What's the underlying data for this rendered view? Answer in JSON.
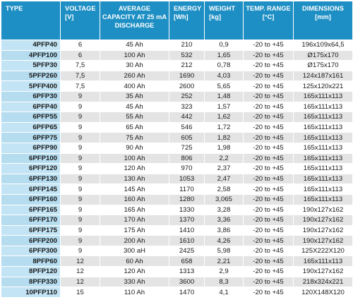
{
  "header": {
    "type": "TYPE",
    "voltage": "VOLTAGE [V]",
    "capacity": "AVERAGE CAPACITY AT 25 mA DISCHARGE",
    "energy": "ENERGY [Wh]",
    "weight": "WEIGHT [kg]",
    "temp": "TEMP. RANGE [°C]",
    "dimensions": "DIMENSIONS [mm]"
  },
  "rows": [
    {
      "type": "4PFP40",
      "voltage": "6",
      "capacity": "45 Ah",
      "energy": "210",
      "weight": "0,9",
      "temp": "-20 to +45",
      "dimensions": "196x109x64,5"
    },
    {
      "type": "4PFP100",
      "voltage": "6",
      "capacity": "100 Ah",
      "energy": "532",
      "weight": "1,65",
      "temp": "-20 to +45",
      "dimensions": "Ø175x170"
    },
    {
      "type": "5PFP30",
      "voltage": "7,5",
      "capacity": "30 Ah",
      "energy": "212",
      "weight": "0,78",
      "temp": "-20 to +45",
      "dimensions": "Ø175x170"
    },
    {
      "type": "5PFP260",
      "voltage": "7,5",
      "capacity": "260 Ah",
      "energy": "1690",
      "weight": "4,03",
      "temp": "-20 to +45",
      "dimensions": "124x187x161"
    },
    {
      "type": "5PFP400",
      "voltage": "7,5",
      "capacity": "400 Ah",
      "energy": "2600",
      "weight": "5,65",
      "temp": "-20 to +45",
      "dimensions": "125x120x221"
    },
    {
      "type": "6PFP30",
      "voltage": "9",
      "capacity": "35 Ah",
      "energy": "252",
      "weight": "1,48",
      "temp": "-20 to +45",
      "dimensions": "165x111x113"
    },
    {
      "type": "6PFP40",
      "voltage": "9",
      "capacity": "45 Ah",
      "energy": "323",
      "weight": "1,57",
      "temp": "-20 to +45",
      "dimensions": "165x111x113"
    },
    {
      "type": "6PFP55",
      "voltage": "9",
      "capacity": "55 Ah",
      "energy": "442",
      "weight": "1,62",
      "temp": "-20 to +45",
      "dimensions": "165x111x113"
    },
    {
      "type": "6PFP65",
      "voltage": "9",
      "capacity": "65 Ah",
      "energy": "546",
      "weight": "1,72",
      "temp": "-20 to +45",
      "dimensions": "165x111x113"
    },
    {
      "type": "6PFP75",
      "voltage": "9",
      "capacity": "75 Ah",
      "energy": "605",
      "weight": "1,82",
      "temp": "-20 to +45",
      "dimensions": "165x111x113"
    },
    {
      "type": "6PFP90",
      "voltage": "9",
      "capacity": "90 Ah",
      "energy": "725",
      "weight": "1,98",
      "temp": "-20 to +45",
      "dimensions": "165x111x113"
    },
    {
      "type": "6PFP100",
      "voltage": "9",
      "capacity": "100 Ah",
      "energy": "806",
      "weight": "2,2",
      "temp": "-20 to +45",
      "dimensions": "165x111x113"
    },
    {
      "type": "6PFP120",
      "voltage": "9",
      "capacity": "120 Ah",
      "energy": "970",
      "weight": "2,37",
      "temp": "-20 to +45",
      "dimensions": "165x111x113"
    },
    {
      "type": "6PFP130",
      "voltage": "9",
      "capacity": "130 Ah",
      "energy": "1053",
      "weight": "2,47",
      "temp": "-20 to +45",
      "dimensions": "165x111x113"
    },
    {
      "type": "6PFP145",
      "voltage": "9",
      "capacity": "145 Ah",
      "energy": "1170",
      "weight": "2,58",
      "temp": "-20 to +45",
      "dimensions": "165x111x113"
    },
    {
      "type": "6PFP160",
      "voltage": "9",
      "capacity": "160 Ah",
      "energy": "1280",
      "weight": "3,065",
      "temp": "-20 to +45",
      "dimensions": "165x111x113"
    },
    {
      "type": "6PFP165",
      "voltage": "9",
      "capacity": "165 Ah",
      "energy": "1330",
      "weight": "3,28",
      "temp": "-20 to +45",
      "dimensions": "190x127x162"
    },
    {
      "type": "6PFP170",
      "voltage": "9",
      "capacity": "170 Ah",
      "energy": "1370",
      "weight": "3,36",
      "temp": "-20 to +45",
      "dimensions": "190x127x162"
    },
    {
      "type": "6PFP175",
      "voltage": "9",
      "capacity": "175 Ah",
      "energy": "1410",
      "weight": "3,86",
      "temp": "-20 to +45",
      "dimensions": "190x127x162"
    },
    {
      "type": "6PFP200",
      "voltage": "9",
      "capacity": "200 Ah",
      "energy": "1610",
      "weight": "4,26",
      "temp": "-20 to +45",
      "dimensions": "190x127x162"
    },
    {
      "type": "6PFP300",
      "voltage": "9",
      "capacity": "300 aH",
      "energy": "2425",
      "weight": "5,98",
      "temp": "-20 to +45",
      "dimensions": "125X222X120"
    },
    {
      "type": "8PFP60",
      "voltage": "12",
      "capacity": "60 Ah",
      "energy": "658",
      "weight": "2,21",
      "temp": "-20 to +45",
      "dimensions": "165x111x113"
    },
    {
      "type": "8PFP120",
      "voltage": "12",
      "capacity": "120 Ah",
      "energy": "1313",
      "weight": "2,9",
      "temp": "-20 to +45",
      "dimensions": "190x127x162"
    },
    {
      "type": "8PFP330",
      "voltage": "12",
      "capacity": "330 Ah",
      "energy": "3600",
      "weight": "8,3",
      "temp": "-20 to +45",
      "dimensions": "218x324x221"
    },
    {
      "type": "10PFP110",
      "voltage": "15",
      "capacity": "110 Ah",
      "energy": "1470",
      "weight": "4,1",
      "temp": "-20 to +45",
      "dimensions": "120X148X120"
    }
  ]
}
